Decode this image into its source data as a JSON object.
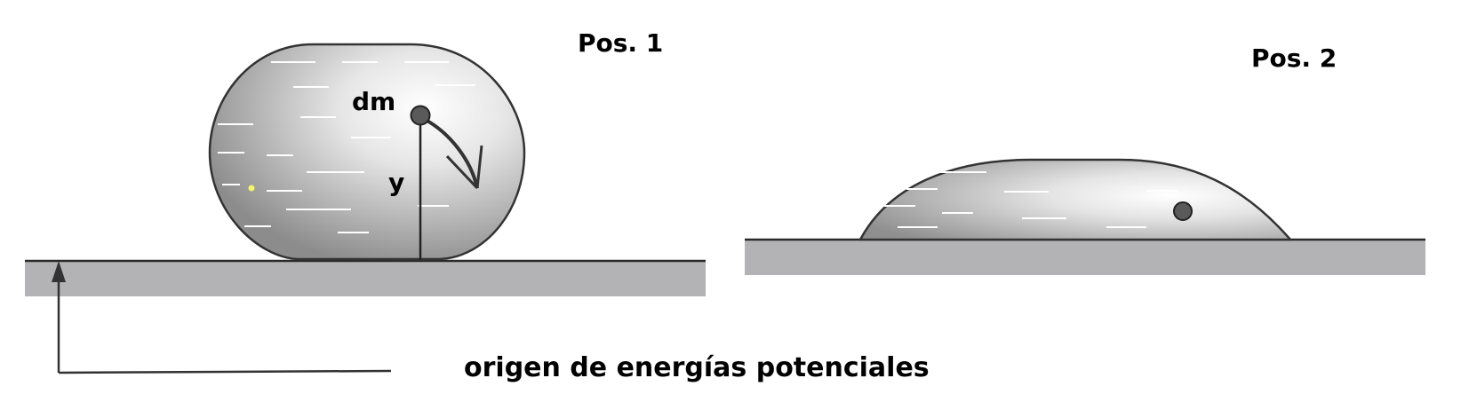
{
  "labels": {
    "pos1": "Pos. 1",
    "pos2": "Pos. 2",
    "dm": "dm",
    "y": "y",
    "origin": "origen de energías potenciales"
  }
}
